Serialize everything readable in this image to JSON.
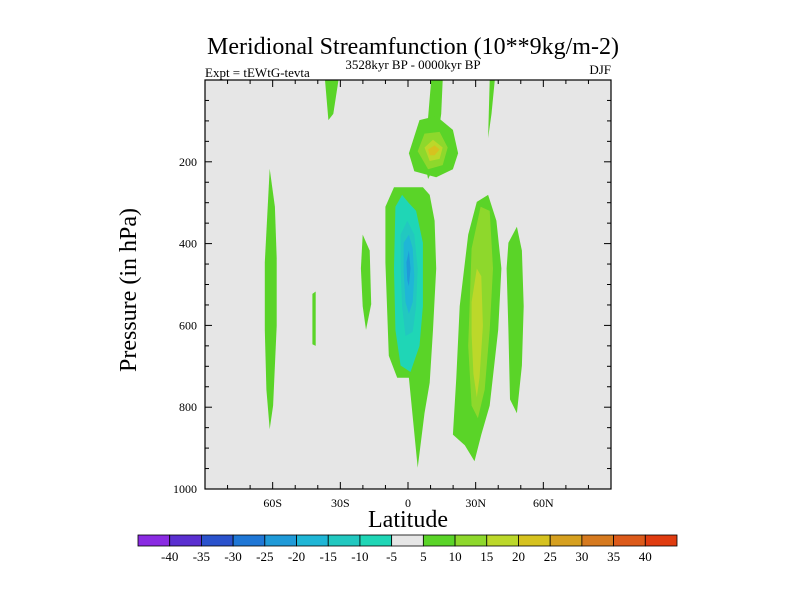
{
  "chart_data": {
    "type": "contour",
    "title": "Meridional Streamfunction (10**9kg/m-2)",
    "experiment": "Expt = tEWtG-tevta",
    "subtitle": "3528kyr BP - 0000kyr BP",
    "season": "DJF",
    "xlabel": "Latitude",
    "ylabel": "Pressure (in hPa)",
    "xlim": [
      -90,
      90
    ],
    "ylim": [
      1000,
      0
    ],
    "x_ticks": [
      {
        "value": -60,
        "label": "60S"
      },
      {
        "value": -30,
        "label": "30S"
      },
      {
        "value": 0,
        "label": "0"
      },
      {
        "value": 30,
        "label": "30N"
      },
      {
        "value": 60,
        "label": "60N"
      }
    ],
    "y_ticks": [
      {
        "value": 200,
        "label": "200"
      },
      {
        "value": 400,
        "label": "400"
      },
      {
        "value": 600,
        "label": "600"
      },
      {
        "value": 800,
        "label": "800"
      },
      {
        "value": 1000,
        "label": "1000"
      }
    ],
    "colorbar": {
      "levels": [
        -40,
        -35,
        -30,
        -25,
        -20,
        -15,
        -10,
        -5,
        5,
        10,
        15,
        20,
        25,
        30,
        35,
        40
      ],
      "colors": [
        "#8a2be2",
        "#5a2fd0",
        "#2a52cc",
        "#1f77d6",
        "#1f9ad8",
        "#1fb6d6",
        "#22c8c0",
        "#1fd6b6",
        "#e6e6e6",
        "#5ad428",
        "#8ed82c",
        "#bcd82a",
        "#d6c21f",
        "#d6a01f",
        "#d67a1f",
        "#dc5a1a",
        "#e03c10"
      ]
    },
    "regions": [
      {
        "level": 5,
        "points": [
          [
            -36.8,
            0
          ],
          [
            -30.8,
            0
          ],
          [
            -33.1,
            83
          ],
          [
            -35.3,
            98
          ]
        ]
      },
      {
        "level": 5,
        "points": [
          [
            -61.3,
            217
          ],
          [
            -59.0,
            310
          ],
          [
            -58.2,
            436
          ],
          [
            -58.2,
            601
          ],
          [
            -59.8,
            796
          ],
          [
            -61.3,
            854
          ],
          [
            -62.8,
            757
          ],
          [
            -63.5,
            611
          ],
          [
            -63.5,
            446
          ]
        ]
      },
      {
        "level": 5,
        "points": [
          [
            -42.4,
            523
          ],
          [
            -40.9,
            517
          ],
          [
            -40.9,
            650
          ],
          [
            -42.4,
            646
          ]
        ]
      },
      {
        "level": 5,
        "points": [
          [
            -20.1,
            378
          ],
          [
            -17.0,
            417
          ],
          [
            -16.3,
            548
          ],
          [
            -18.6,
            611
          ],
          [
            -20.1,
            553
          ],
          [
            -20.9,
            461
          ]
        ]
      },
      {
        "level": 5,
        "points": [
          [
            10.3,
            0
          ],
          [
            15.4,
            0
          ],
          [
            14.7,
            83
          ],
          [
            12.5,
            170
          ],
          [
            11.1,
            218
          ],
          [
            8.9,
            242
          ],
          [
            7.3,
            198
          ]
        ]
      },
      {
        "level": 5,
        "points": [
          [
            36.2,
            0
          ],
          [
            38.5,
            0
          ],
          [
            37.0,
            83
          ],
          [
            35.5,
            142
          ]
        ]
      },
      {
        "level": 5,
        "points": [
          [
            -10.0,
            310
          ],
          [
            -6.2,
            262
          ],
          [
            6.6,
            262
          ],
          [
            9.6,
            281
          ],
          [
            11.8,
            344
          ],
          [
            12.5,
            461
          ],
          [
            11.1,
            611
          ],
          [
            9.6,
            740
          ],
          [
            7.3,
            815
          ],
          [
            4.3,
            948
          ],
          [
            0.4,
            728
          ],
          [
            -4.8,
            728
          ],
          [
            -8.5,
            674
          ],
          [
            -9.3,
            553
          ],
          [
            -10.0,
            446
          ]
        ]
      },
      {
        "level": 5,
        "points": [
          [
            26.7,
            378
          ],
          [
            30.5,
            298
          ],
          [
            35.5,
            281
          ],
          [
            39.2,
            344
          ],
          [
            41.4,
            461
          ],
          [
            40.0,
            611
          ],
          [
            36.2,
            796
          ],
          [
            32.5,
            867
          ],
          [
            29.5,
            932
          ],
          [
            25.2,
            893
          ],
          [
            19.9,
            867
          ],
          [
            21.4,
            728
          ],
          [
            22.9,
            553
          ]
        ]
      },
      {
        "level": 5,
        "points": [
          [
            44.5,
            398
          ],
          [
            48.3,
            359
          ],
          [
            50.5,
            417
          ],
          [
            51.3,
            553
          ],
          [
            50.5,
            698
          ],
          [
            48.3,
            815
          ],
          [
            45.2,
            781
          ],
          [
            44.5,
            611
          ],
          [
            43.7,
            461
          ]
        ]
      },
      {
        "level": 5,
        "points": [
          [
            0.4,
            179
          ],
          [
            5.1,
            98
          ],
          [
            12.5,
            88
          ],
          [
            19.9,
            122
          ],
          [
            22.2,
            179
          ],
          [
            19.9,
            218
          ],
          [
            12.5,
            238
          ],
          [
            2.8,
            223
          ]
        ]
      },
      {
        "level": 10,
        "points": [
          [
            28.2,
            412
          ],
          [
            32.2,
            310
          ],
          [
            36.2,
            320
          ],
          [
            37.7,
            461
          ],
          [
            36.2,
            611
          ],
          [
            34.0,
            757
          ],
          [
            31.0,
            827
          ],
          [
            28.2,
            796
          ],
          [
            26.7,
            650
          ]
        ]
      },
      {
        "level": 10,
        "points": [
          [
            4.3,
            174
          ],
          [
            7.3,
            131
          ],
          [
            14.0,
            127
          ],
          [
            17.6,
            165
          ],
          [
            15.4,
            208
          ],
          [
            8.9,
            218
          ]
        ]
      },
      {
        "level": 15,
        "points": [
          [
            28.2,
            543
          ],
          [
            30.5,
            461
          ],
          [
            32.5,
            480
          ],
          [
            33.2,
            601
          ],
          [
            31.7,
            728
          ],
          [
            30.5,
            776
          ],
          [
            29.0,
            718
          ],
          [
            28.2,
            621
          ]
        ]
      },
      {
        "level": 15,
        "points": [
          [
            7.3,
            165
          ],
          [
            11.1,
            146
          ],
          [
            15.4,
            165
          ],
          [
            14.0,
            193
          ],
          [
            9.6,
            198
          ]
        ]
      },
      {
        "level": 20,
        "points": [
          [
            8.9,
            170
          ],
          [
            11.8,
            160
          ],
          [
            14.0,
            170
          ],
          [
            11.8,
            184
          ],
          [
            9.6,
            184
          ]
        ]
      },
      {
        "level": -5,
        "points": [
          [
            -5.6,
            310
          ],
          [
            -2.6,
            281
          ],
          [
            0.4,
            301
          ],
          [
            3.6,
            320
          ],
          [
            6.6,
            398
          ],
          [
            6.6,
            553
          ],
          [
            5.1,
            650
          ],
          [
            1.1,
            714
          ],
          [
            -3.3,
            698
          ],
          [
            -5.6,
            611
          ],
          [
            -6.2,
            461
          ]
        ]
      },
      {
        "level": -10,
        "points": [
          [
            -3.3,
            378
          ],
          [
            -0.3,
            344
          ],
          [
            2.8,
            378
          ],
          [
            4.3,
            461
          ],
          [
            3.6,
            553
          ],
          [
            2.1,
            616
          ],
          [
            -1.1,
            626
          ],
          [
            -2.6,
            553
          ],
          [
            -3.3,
            461
          ]
        ]
      },
      {
        "level": -15,
        "points": [
          [
            -1.9,
            398
          ],
          [
            0.4,
            378
          ],
          [
            2.1,
            412
          ],
          [
            2.8,
            480
          ],
          [
            2.1,
            543
          ],
          [
            0.4,
            572
          ],
          [
            -1.1,
            543
          ],
          [
            -1.9,
            470
          ]
        ]
      },
      {
        "level": -20,
        "points": [
          [
            -0.7,
            446
          ],
          [
            0.4,
            417
          ],
          [
            1.1,
            461
          ],
          [
            0.4,
            504
          ],
          [
            -0.3,
            490
          ]
        ]
      }
    ]
  }
}
